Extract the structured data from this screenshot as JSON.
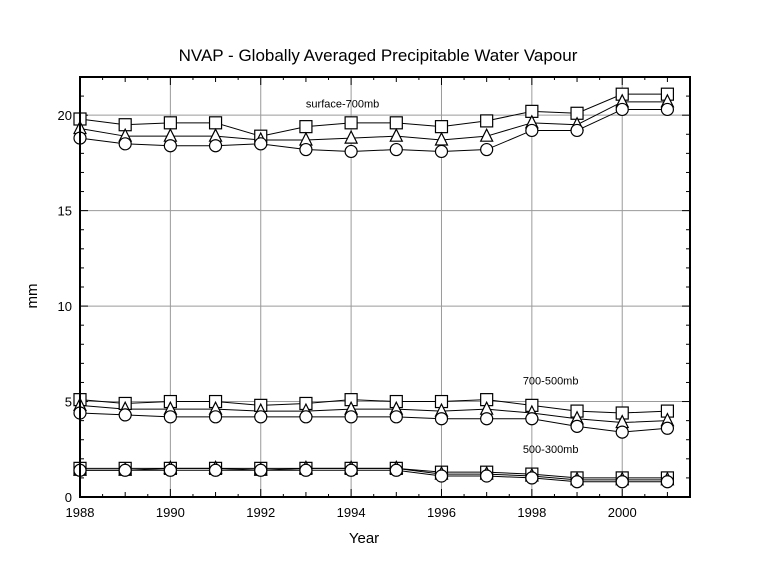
{
  "chart_data": {
    "type": "line",
    "title": "NVAP - Globally Averaged Precipitable Water Vapour",
    "xlabel": "Year",
    "ylabel": "mm",
    "xlim": [
      1988,
      2001.5
    ],
    "ylim": [
      0,
      22
    ],
    "xticks": [
      1988,
      1990,
      1992,
      1994,
      1996,
      1998,
      2000
    ],
    "yticks": [
      0,
      5,
      10,
      15,
      20
    ],
    "grid": true,
    "x": [
      1988,
      1989,
      1990,
      1991,
      1992,
      1993,
      1994,
      1995,
      1996,
      1997,
      1998,
      1999,
      2000,
      2001
    ],
    "groups": [
      {
        "label": "surface-700mb",
        "series": [
          {
            "marker": "square",
            "values": [
              19.8,
              19.5,
              19.6,
              19.6,
              18.9,
              19.4,
              19.6,
              19.6,
              19.4,
              19.7,
              20.2,
              20.1,
              21.1,
              21.1
            ]
          },
          {
            "marker": "triangle",
            "values": [
              19.3,
              18.9,
              18.9,
              18.9,
              18.7,
              18.7,
              18.8,
              18.9,
              18.7,
              18.9,
              19.6,
              19.5,
              20.7,
              20.7
            ]
          },
          {
            "marker": "circle",
            "values": [
              18.8,
              18.5,
              18.4,
              18.4,
              18.5,
              18.2,
              18.1,
              18.2,
              18.1,
              18.2,
              19.2,
              19.2,
              20.3,
              20.3
            ]
          }
        ]
      },
      {
        "label": "700-500mb",
        "series": [
          {
            "marker": "square",
            "values": [
              5.1,
              4.9,
              5.0,
              5.0,
              4.8,
              4.9,
              5.1,
              5.0,
              5.0,
              5.1,
              4.8,
              4.5,
              4.4,
              4.5
            ]
          },
          {
            "marker": "triangle",
            "values": [
              4.8,
              4.6,
              4.6,
              4.6,
              4.5,
              4.5,
              4.6,
              4.6,
              4.5,
              4.6,
              4.4,
              4.1,
              3.9,
              4.0
            ]
          },
          {
            "marker": "circle",
            "values": [
              4.4,
              4.3,
              4.2,
              4.2,
              4.2,
              4.2,
              4.2,
              4.2,
              4.1,
              4.1,
              4.1,
              3.7,
              3.4,
              3.6
            ]
          }
        ]
      },
      {
        "label": "500-300mb",
        "series": [
          {
            "marker": "square",
            "values": [
              1.5,
              1.5,
              1.5,
              1.5,
              1.5,
              1.5,
              1.5,
              1.5,
              1.3,
              1.3,
              1.2,
              1.0,
              1.0,
              1.0
            ]
          },
          {
            "marker": "triangle",
            "values": [
              1.4,
              1.4,
              1.5,
              1.5,
              1.4,
              1.5,
              1.5,
              1.5,
              1.2,
              1.2,
              1.1,
              0.9,
              0.9,
              0.9
            ]
          },
          {
            "marker": "circle",
            "values": [
              1.4,
              1.4,
              1.4,
              1.4,
              1.4,
              1.4,
              1.4,
              1.4,
              1.1,
              1.1,
              1.0,
              0.8,
              0.8,
              0.8
            ]
          }
        ]
      }
    ],
    "line_color": "#000000",
    "grid_color": "#9a9a9a"
  }
}
